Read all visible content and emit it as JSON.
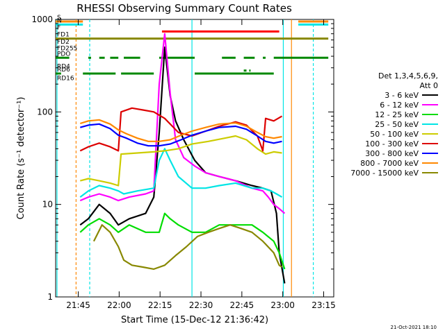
{
  "chart_data": {
    "type": "line",
    "title": "RHESSI Observing Summary Count Rates",
    "xlabel": "Start Time (15-Dec-12 21:36:42)",
    "ylabel": "Count Rate (s⁻¹ detector⁻¹)",
    "yscale": "log",
    "xlim_minutes": [
      0,
      102
    ],
    "ylim": [
      1,
      1000
    ],
    "x_ticks": [
      {
        "t": 8.3,
        "label": "21:45"
      },
      {
        "t": 23.3,
        "label": "22:00"
      },
      {
        "t": 38.3,
        "label": "22:15"
      },
      {
        "t": 53.3,
        "label": "22:30"
      },
      {
        "t": 68.3,
        "label": "22:45"
      },
      {
        "t": 83.3,
        "label": "23:00"
      },
      {
        "t": 98.3,
        "label": "23:15"
      }
    ],
    "y_ticks": [
      {
        "v": 1,
        "label": "1"
      },
      {
        "v": 10,
        "label": "10"
      },
      {
        "v": 100,
        "label": "100"
      },
      {
        "v": 1000,
        "label": "1000"
      }
    ],
    "legend_header": [
      "Det 1,3,4,5,6,9,",
      "Att 0"
    ],
    "legend_position": "right",
    "series": [
      {
        "name": "3 - 6 keV",
        "color": "#000000",
        "points": [
          [
            9,
            6
          ],
          [
            12,
            7
          ],
          [
            16,
            10
          ],
          [
            20,
            8
          ],
          [
            23,
            6
          ],
          [
            27,
            7
          ],
          [
            33,
            8
          ],
          [
            36,
            12
          ],
          [
            38,
            60
          ],
          [
            40,
            500
          ],
          [
            42,
            150
          ],
          [
            44,
            80
          ],
          [
            47,
            50
          ],
          [
            51,
            30
          ],
          [
            55,
            22
          ],
          [
            60,
            20
          ],
          [
            66,
            18
          ],
          [
            72,
            16
          ],
          [
            76,
            15
          ],
          [
            79,
            14
          ],
          [
            81,
            8
          ],
          [
            82,
            3
          ],
          [
            84,
            1.4
          ]
        ]
      },
      {
        "name": "6 - 12 keV",
        "color": "#ff00ff",
        "points": [
          [
            9,
            11
          ],
          [
            12,
            12
          ],
          [
            16,
            13
          ],
          [
            20,
            12
          ],
          [
            23,
            11
          ],
          [
            27,
            12
          ],
          [
            33,
            13
          ],
          [
            36,
            14
          ],
          [
            38,
            200
          ],
          [
            40,
            700
          ],
          [
            42,
            160
          ],
          [
            44,
            50
          ],
          [
            47,
            32
          ],
          [
            51,
            26
          ],
          [
            55,
            22
          ],
          [
            60,
            20
          ],
          [
            66,
            18
          ],
          [
            72,
            15
          ],
          [
            76,
            14
          ],
          [
            78,
            12
          ],
          [
            80,
            10
          ],
          [
            82,
            9
          ],
          [
            84,
            8
          ]
        ]
      },
      {
        "name": "12 - 25 keV",
        "color": "#00dd00",
        "points": [
          [
            9,
            5
          ],
          [
            12,
            6
          ],
          [
            16,
            7
          ],
          [
            20,
            6
          ],
          [
            23,
            5
          ],
          [
            27,
            6
          ],
          [
            33,
            5
          ],
          [
            38,
            5
          ],
          [
            40,
            8
          ],
          [
            42,
            7
          ],
          [
            45,
            6
          ],
          [
            50,
            5
          ],
          [
            55,
            5
          ],
          [
            60,
            6
          ],
          [
            66,
            6
          ],
          [
            72,
            6
          ],
          [
            76,
            5
          ],
          [
            80,
            4
          ],
          [
            82,
            3
          ],
          [
            84,
            2
          ]
        ]
      },
      {
        "name": "25 - 50 keV",
        "color": "#00e5e5",
        "points": [
          [
            9,
            12
          ],
          [
            12,
            14
          ],
          [
            16,
            16
          ],
          [
            20,
            15
          ],
          [
            23,
            14
          ],
          [
            25,
            13
          ],
          [
            30,
            14
          ],
          [
            36,
            15
          ],
          [
            38,
            30
          ],
          [
            40,
            40
          ],
          [
            42,
            30
          ],
          [
            45,
            20
          ],
          [
            50,
            15
          ],
          [
            55,
            15
          ],
          [
            60,
            16
          ],
          [
            66,
            17
          ],
          [
            72,
            15
          ],
          [
            76,
            15
          ],
          [
            79,
            14
          ],
          [
            81,
            13
          ],
          [
            83,
            12
          ]
        ]
      },
      {
        "name": "50 - 100 keV",
        "color": "#cccc00",
        "points": [
          [
            9,
            18
          ],
          [
            12,
            19
          ],
          [
            16,
            18
          ],
          [
            20,
            17
          ],
          [
            23,
            16
          ],
          [
            24,
            35
          ],
          [
            30,
            36
          ],
          [
            36,
            37
          ],
          [
            40,
            38
          ],
          [
            45,
            40
          ],
          [
            50,
            45
          ],
          [
            56,
            48
          ],
          [
            62,
            52
          ],
          [
            66,
            55
          ],
          [
            70,
            50
          ],
          [
            74,
            40
          ],
          [
            77,
            35
          ],
          [
            80,
            37
          ],
          [
            83,
            36
          ]
        ]
      },
      {
        "name": "100 - 300 keV",
        "color": "#dd0000",
        "points": [
          [
            9,
            38
          ],
          [
            12,
            42
          ],
          [
            16,
            46
          ],
          [
            20,
            42
          ],
          [
            23,
            38
          ],
          [
            24,
            100
          ],
          [
            28,
            110
          ],
          [
            32,
            105
          ],
          [
            36,
            100
          ],
          [
            40,
            85
          ],
          [
            45,
            60
          ],
          [
            50,
            55
          ],
          [
            55,
            62
          ],
          [
            60,
            70
          ],
          [
            66,
            78
          ],
          [
            70,
            72
          ],
          [
            74,
            55
          ],
          [
            76,
            38
          ],
          [
            77,
            85
          ],
          [
            80,
            80
          ],
          [
            83,
            90
          ]
        ]
      },
      {
        "name": "300 - 800 keV",
        "color": "#0000ff",
        "points": [
          [
            9,
            68
          ],
          [
            12,
            72
          ],
          [
            16,
            74
          ],
          [
            20,
            66
          ],
          [
            23,
            56
          ],
          [
            26,
            52
          ],
          [
            30,
            46
          ],
          [
            34,
            43
          ],
          [
            38,
            43
          ],
          [
            42,
            45
          ],
          [
            46,
            50
          ],
          [
            50,
            56
          ],
          [
            55,
            62
          ],
          [
            60,
            68
          ],
          [
            66,
            70
          ],
          [
            70,
            65
          ],
          [
            74,
            55
          ],
          [
            77,
            48
          ],
          [
            80,
            46
          ],
          [
            83,
            48
          ]
        ]
      },
      {
        "name": "800 - 7000 keV",
        "color": "#ff8800",
        "points": [
          [
            9,
            75
          ],
          [
            12,
            80
          ],
          [
            16,
            82
          ],
          [
            20,
            74
          ],
          [
            23,
            64
          ],
          [
            26,
            58
          ],
          [
            30,
            52
          ],
          [
            34,
            48
          ],
          [
            38,
            48
          ],
          [
            42,
            50
          ],
          [
            46,
            56
          ],
          [
            50,
            62
          ],
          [
            55,
            68
          ],
          [
            60,
            74
          ],
          [
            66,
            76
          ],
          [
            70,
            70
          ],
          [
            74,
            60
          ],
          [
            77,
            54
          ],
          [
            80,
            52
          ],
          [
            83,
            54
          ]
        ]
      },
      {
        "name": "7000 - 15000 keV",
        "color": "#888800",
        "points": [
          [
            14,
            4
          ],
          [
            17,
            6
          ],
          [
            20,
            5
          ],
          [
            23,
            3.5
          ],
          [
            25,
            2.5
          ],
          [
            28,
            2.2
          ],
          [
            32,
            2.1
          ],
          [
            36,
            2
          ],
          [
            40,
            2.2
          ],
          [
            44,
            2.8
          ],
          [
            48,
            3.5
          ],
          [
            52,
            4.5
          ],
          [
            56,
            5
          ],
          [
            60,
            5.5
          ],
          [
            64,
            6
          ],
          [
            68,
            5.5
          ],
          [
            72,
            5
          ],
          [
            76,
            4
          ],
          [
            80,
            3
          ],
          [
            82,
            2.2
          ],
          [
            83,
            2.1
          ]
        ]
      }
    ],
    "flag_bars": [
      {
        "label": "S",
        "color": "#ff8800",
        "y": 950,
        "segments": [
          [
            0,
            10
          ],
          [
            89,
            100
          ]
        ]
      },
      {
        "label": "N",
        "color": "#00e5e5",
        "y": 880,
        "segments": [
          [
            0,
            10
          ],
          [
            89,
            100
          ]
        ]
      },
      {
        "label": "F",
        "color": "#ff0000",
        "y": 740,
        "segments": [
          [
            39,
            82
          ]
        ]
      },
      {
        "label": "FD1",
        "color": "#888800",
        "y": 620,
        "segments": [
          [
            0,
            100
          ]
        ]
      },
      {
        "label": "FD2",
        "color": "#888800",
        "y": 520,
        "segments": []
      },
      {
        "label": "FD255",
        "color": "#888800",
        "y": 440,
        "segments": []
      },
      {
        "label": "PDO",
        "color": "#008800",
        "y": 385,
        "segments": [
          [
            0,
            5
          ],
          [
            12,
            13
          ],
          [
            16,
            18
          ],
          [
            20,
            23
          ],
          [
            25,
            31
          ],
          [
            38,
            51
          ],
          [
            61,
            66
          ],
          [
            69,
            73
          ],
          [
            76,
            77
          ],
          [
            80,
            100
          ]
        ]
      },
      {
        "label": "RD4",
        "color": "#008800",
        "y": 280,
        "segments": [
          [
            69,
            70
          ],
          [
            71,
            71.5
          ]
        ]
      },
      {
        "label": "RD6",
        "color": "#008800",
        "y": 260,
        "segments": [
          [
            0,
            2
          ],
          [
            10,
            22
          ],
          [
            24,
            36
          ],
          [
            51,
            80
          ]
        ]
      },
      {
        "label": "RD16",
        "color": "#008800",
        "y": 210,
        "segments": []
      }
    ],
    "vlines": [
      {
        "t": 7.5,
        "color": "#ff8800",
        "dashed": true
      },
      {
        "t": 12.5,
        "color": "#00e5e5",
        "dashed": true
      },
      {
        "t": 0.5,
        "color": "#00e5e5",
        "dashed": false
      },
      {
        "t": 50,
        "color": "#00e5e5",
        "dashed": false
      },
      {
        "t": 83.5,
        "color": "#00e5e5",
        "dashed": false
      },
      {
        "t": 86.5,
        "color": "#ff8800",
        "dashed": false
      },
      {
        "t": 94.5,
        "color": "#00e5e5",
        "dashed": true
      }
    ],
    "timestamp": "21-Oct-2021 18:10"
  }
}
